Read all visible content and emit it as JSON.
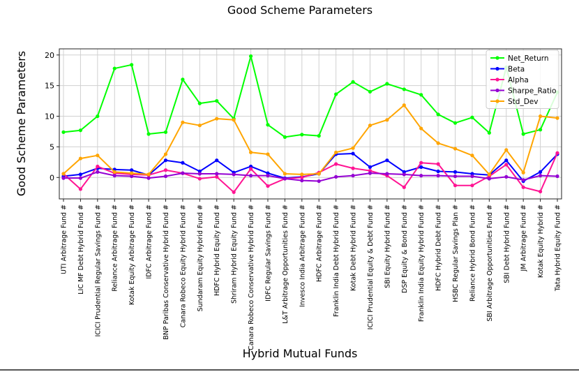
{
  "chart_data": {
    "type": "line",
    "title": "Good Scheme Parameters",
    "xlabel": "Hybrid Mutual Funds",
    "ylabel": "Good Scheme Parameters",
    "ylim": [
      -3.5,
      21
    ],
    "yticks": [
      0,
      5,
      10,
      15,
      20
    ],
    "grid": true,
    "legend_position": "top-right",
    "categories": [
      "UTI Arbitrage Fund #",
      "LIC MF Debt Hybrid Fund #",
      "ICICI Prudential Regular Savings Fund #",
      "Reliance Arbitrage Fund #",
      "Kotak Equity Arbitrage Fund #",
      "IDFC Arbitrage Fund #",
      "BNP Paribas Conservative Hybrid Fund #",
      "Canara Robeco Equity Hybrid Fund #",
      "Sundaram Equity Hybrid Fund #",
      "HDFC Hybrid Equity Fund #",
      "Shriram Hybrid Equity Fund #",
      "Canara Robeco Conservative Hybrid Fund #",
      "IDFC Regular Savings Fund #",
      "L&T Arbitrage Opportunities Fund #",
      "Invesco India Arbitrage Fund #",
      "HDFC Arbitrage Fund #",
      "Franklin India Debt Hybrid Fund #",
      "Kotak Debt Hybrid Fund #",
      "ICICI Prudential Equity & Debt Fund #",
      "SBI Equity Hybrid Fund #",
      "DSP Equity & Bond Fund #",
      "Franklin India Equity Hybrid Fund #",
      "HDFC Hybrid Debt Fund #",
      "HSBC Regular Savings Plan #",
      "Reliance Hybrid Bond Fund #",
      "SBI Arbitrage Opportunities Fund #",
      "SBI Debt Hybrid Fund #",
      "JM Arbitrage Fund #",
      "Kotak Equity Hybrid #",
      "Tata Hybrid Equity Fund #"
    ],
    "series": [
      {
        "name": "Net_Return",
        "color": "#00ff00",
        "values": [
          7.4,
          7.7,
          10.0,
          17.8,
          18.4,
          7.1,
          7.4,
          16.0,
          12.1,
          12.5,
          9.6,
          19.8,
          8.6,
          6.6,
          7.0,
          6.8,
          13.6,
          15.6,
          14.0,
          15.3,
          14.4,
          13.5,
          10.3,
          8.9,
          9.8,
          7.3,
          18.0,
          7.1,
          7.8,
          13.9
        ]
      },
      {
        "name": "Beta",
        "color": "#0000ff",
        "values": [
          0.2,
          0.5,
          1.5,
          1.3,
          1.2,
          0.4,
          2.8,
          2.4,
          1.0,
          2.8,
          0.8,
          1.8,
          0.7,
          -0.1,
          0.1,
          0.6,
          3.8,
          3.9,
          1.7,
          2.8,
          0.9,
          1.7,
          1.0,
          0.9,
          0.6,
          0.4,
          2.8,
          -0.6,
          0.9,
          3.8
        ]
      },
      {
        "name": "Alpha",
        "color": "#ff1493",
        "values": [
          0.6,
          -1.9,
          1.8,
          0.7,
          0.5,
          0.4,
          1.2,
          0.7,
          -0.2,
          0.1,
          -2.4,
          1.4,
          -1.4,
          -0.2,
          0.0,
          0.8,
          2.2,
          1.5,
          1.1,
          0.3,
          -1.6,
          2.4,
          2.2,
          -1.3,
          -1.3,
          0.2,
          2.1,
          -1.6,
          -2.3,
          4.0
        ]
      },
      {
        "name": "Sharpe_Ratio",
        "color": "#9400d3",
        "values": [
          -0.1,
          -0.1,
          0.9,
          0.3,
          0.2,
          -0.1,
          0.2,
          0.7,
          0.6,
          0.6,
          0.5,
          0.3,
          0.3,
          -0.2,
          -0.5,
          -0.6,
          0.1,
          0.3,
          0.7,
          0.6,
          0.5,
          0.3,
          0.3,
          0.2,
          0.2,
          -0.2,
          0.1,
          -0.4,
          0.3,
          0.2
        ]
      },
      {
        "name": "Std_Dev",
        "color": "#ffa500",
        "values": [
          0.6,
          3.1,
          3.6,
          0.9,
          0.7,
          0.5,
          3.8,
          9.0,
          8.5,
          9.6,
          9.4,
          4.1,
          3.8,
          0.6,
          0.5,
          0.6,
          4.1,
          4.8,
          8.5,
          9.4,
          11.8,
          8.0,
          5.6,
          4.7,
          3.6,
          0.5,
          4.5,
          0.8,
          10.0,
          9.7
        ]
      }
    ]
  }
}
